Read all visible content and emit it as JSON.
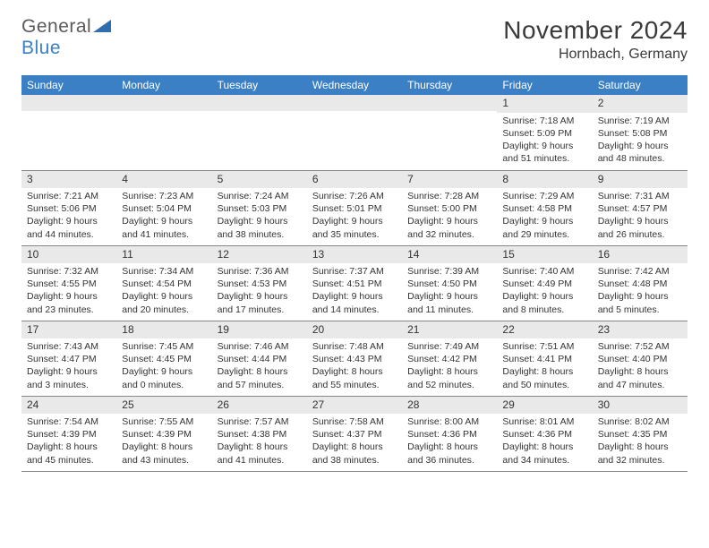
{
  "brand": {
    "name1": "General",
    "name2": "Blue",
    "icon_color": "#2f6fb0"
  },
  "title": "November 2024",
  "location": "Hornbach, Germany",
  "colors": {
    "header_bg": "#3b7fc4",
    "header_text": "#ffffff",
    "daynum_bg": "#e9e9e9",
    "text": "#333333",
    "rule": "#888888"
  },
  "weekdays": [
    "Sunday",
    "Monday",
    "Tuesday",
    "Wednesday",
    "Thursday",
    "Friday",
    "Saturday"
  ],
  "weeks": [
    [
      {
        "empty": true
      },
      {
        "empty": true
      },
      {
        "empty": true
      },
      {
        "empty": true
      },
      {
        "empty": true
      },
      {
        "day": "1",
        "sunrise": "7:18 AM",
        "sunset": "5:09 PM",
        "daylight": "9 hours and 51 minutes."
      },
      {
        "day": "2",
        "sunrise": "7:19 AM",
        "sunset": "5:08 PM",
        "daylight": "9 hours and 48 minutes."
      }
    ],
    [
      {
        "day": "3",
        "sunrise": "7:21 AM",
        "sunset": "5:06 PM",
        "daylight": "9 hours and 44 minutes."
      },
      {
        "day": "4",
        "sunrise": "7:23 AM",
        "sunset": "5:04 PM",
        "daylight": "9 hours and 41 minutes."
      },
      {
        "day": "5",
        "sunrise": "7:24 AM",
        "sunset": "5:03 PM",
        "daylight": "9 hours and 38 minutes."
      },
      {
        "day": "6",
        "sunrise": "7:26 AM",
        "sunset": "5:01 PM",
        "daylight": "9 hours and 35 minutes."
      },
      {
        "day": "7",
        "sunrise": "7:28 AM",
        "sunset": "5:00 PM",
        "daylight": "9 hours and 32 minutes."
      },
      {
        "day": "8",
        "sunrise": "7:29 AM",
        "sunset": "4:58 PM",
        "daylight": "9 hours and 29 minutes."
      },
      {
        "day": "9",
        "sunrise": "7:31 AM",
        "sunset": "4:57 PM",
        "daylight": "9 hours and 26 minutes."
      }
    ],
    [
      {
        "day": "10",
        "sunrise": "7:32 AM",
        "sunset": "4:55 PM",
        "daylight": "9 hours and 23 minutes."
      },
      {
        "day": "11",
        "sunrise": "7:34 AM",
        "sunset": "4:54 PM",
        "daylight": "9 hours and 20 minutes."
      },
      {
        "day": "12",
        "sunrise": "7:36 AM",
        "sunset": "4:53 PM",
        "daylight": "9 hours and 17 minutes."
      },
      {
        "day": "13",
        "sunrise": "7:37 AM",
        "sunset": "4:51 PM",
        "daylight": "9 hours and 14 minutes."
      },
      {
        "day": "14",
        "sunrise": "7:39 AM",
        "sunset": "4:50 PM",
        "daylight": "9 hours and 11 minutes."
      },
      {
        "day": "15",
        "sunrise": "7:40 AM",
        "sunset": "4:49 PM",
        "daylight": "9 hours and 8 minutes."
      },
      {
        "day": "16",
        "sunrise": "7:42 AM",
        "sunset": "4:48 PM",
        "daylight": "9 hours and 5 minutes."
      }
    ],
    [
      {
        "day": "17",
        "sunrise": "7:43 AM",
        "sunset": "4:47 PM",
        "daylight": "9 hours and 3 minutes."
      },
      {
        "day": "18",
        "sunrise": "7:45 AM",
        "sunset": "4:45 PM",
        "daylight": "9 hours and 0 minutes."
      },
      {
        "day": "19",
        "sunrise": "7:46 AM",
        "sunset": "4:44 PM",
        "daylight": "8 hours and 57 minutes."
      },
      {
        "day": "20",
        "sunrise": "7:48 AM",
        "sunset": "4:43 PM",
        "daylight": "8 hours and 55 minutes."
      },
      {
        "day": "21",
        "sunrise": "7:49 AM",
        "sunset": "4:42 PM",
        "daylight": "8 hours and 52 minutes."
      },
      {
        "day": "22",
        "sunrise": "7:51 AM",
        "sunset": "4:41 PM",
        "daylight": "8 hours and 50 minutes."
      },
      {
        "day": "23",
        "sunrise": "7:52 AM",
        "sunset": "4:40 PM",
        "daylight": "8 hours and 47 minutes."
      }
    ],
    [
      {
        "day": "24",
        "sunrise": "7:54 AM",
        "sunset": "4:39 PM",
        "daylight": "8 hours and 45 minutes."
      },
      {
        "day": "25",
        "sunrise": "7:55 AM",
        "sunset": "4:39 PM",
        "daylight": "8 hours and 43 minutes."
      },
      {
        "day": "26",
        "sunrise": "7:57 AM",
        "sunset": "4:38 PM",
        "daylight": "8 hours and 41 minutes."
      },
      {
        "day": "27",
        "sunrise": "7:58 AM",
        "sunset": "4:37 PM",
        "daylight": "8 hours and 38 minutes."
      },
      {
        "day": "28",
        "sunrise": "8:00 AM",
        "sunset": "4:36 PM",
        "daylight": "8 hours and 36 minutes."
      },
      {
        "day": "29",
        "sunrise": "8:01 AM",
        "sunset": "4:36 PM",
        "daylight": "8 hours and 34 minutes."
      },
      {
        "day": "30",
        "sunrise": "8:02 AM",
        "sunset": "4:35 PM",
        "daylight": "8 hours and 32 minutes."
      }
    ]
  ],
  "labels": {
    "sunrise": "Sunrise: ",
    "sunset": "Sunset: ",
    "daylight": "Daylight: "
  }
}
